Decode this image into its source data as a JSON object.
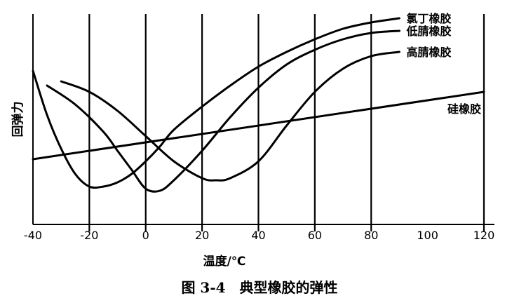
{
  "caption": "图 3-4　典型橡胶的弹性",
  "chart_data": {
    "type": "line",
    "title": "",
    "xlabel": "温度/℃",
    "ylabel": "回弹力",
    "xlim": [
      -40,
      120
    ],
    "ylim": [
      0,
      100
    ],
    "xticks": [
      -40,
      -20,
      0,
      20,
      40,
      60,
      80,
      100,
      120
    ],
    "xtick_labels": [
      "-40",
      "-20",
      "0",
      "20",
      "40",
      "60",
      "80",
      "100",
      "120"
    ],
    "yticks_shown": false,
    "grid": "vertical lines at x = -20, 0, 20, 40, 60, 80, 120",
    "grid_x": [
      -20,
      0,
      20,
      40,
      60,
      80,
      120
    ],
    "series": [
      {
        "name": "氯丁橡胶",
        "x": [
          -40,
          -35,
          -30,
          -25,
          -20,
          -15,
          -10,
          -5,
          0,
          5,
          10,
          20,
          30,
          40,
          50,
          60,
          70,
          80,
          90
        ],
        "y": [
          73,
          52,
          36,
          24,
          18,
          18,
          20,
          24,
          30,
          37,
          45,
          56,
          66,
          75,
          82,
          88,
          93,
          96,
          98
        ]
      },
      {
        "name": "低腈橡胶",
        "x": [
          -35,
          -25,
          -15,
          -10,
          -5,
          0,
          5,
          10,
          20,
          30,
          40,
          50,
          60,
          70,
          80,
          90
        ],
        "y": [
          66,
          57,
          44,
          35,
          26,
          17,
          16,
          21,
          35,
          51,
          65,
          76,
          83,
          88,
          91,
          92
        ]
      },
      {
        "name": "高腈橡胶",
        "x": [
          -30,
          -20,
          -10,
          0,
          10,
          20,
          25,
          30,
          40,
          50,
          60,
          70,
          80,
          90
        ],
        "y": [
          68,
          63,
          54,
          42,
          30,
          22,
          21,
          22,
          30,
          47,
          63,
          74,
          80,
          82
        ]
      },
      {
        "name": "硅橡胶",
        "x": [
          -40,
          120
        ],
        "y": [
          31,
          63
        ]
      }
    ]
  }
}
